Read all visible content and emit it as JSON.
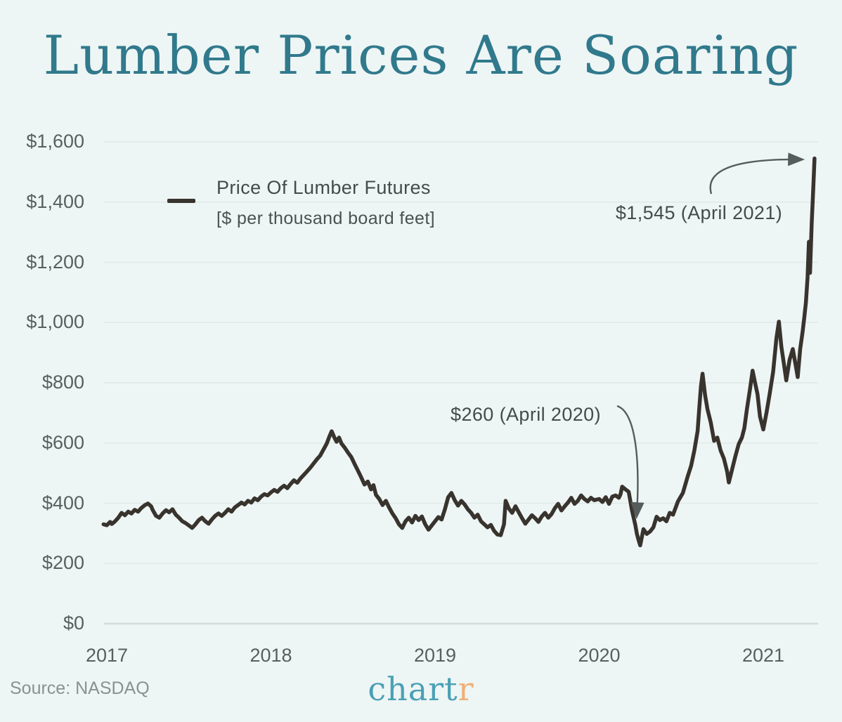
{
  "title": "Lumber Prices Are Soaring",
  "legend": {
    "label": "Price Of Lumber Futures",
    "sublabel": "[$ per thousand board feet]"
  },
  "annotations": {
    "peak": "$1,545 (April 2021)",
    "trough": "$260 (April 2020)"
  },
  "footer": {
    "source": "Source: NASDAQ",
    "logo_main": "chart",
    "logo_accent": "r"
  },
  "colors": {
    "background": "#edf6f5",
    "title": "#31798c",
    "line": "#39332e",
    "grid": "#dfe9e8",
    "axis_zero": "#d2dcdb",
    "axis_text": "#57605e",
    "annotation_text": "#454b4a",
    "sub_text": "#4b5150",
    "arrow": "#565c5c",
    "source_text": "#8a918f",
    "logo_teal": "#4aa0b5",
    "logo_orange": "#f0b078"
  },
  "chart_data": {
    "type": "line",
    "title": "Lumber Prices Are Soaring",
    "series_name": "Price Of Lumber Futures",
    "units": "$ per thousand board feet",
    "source": "NASDAQ",
    "grid": "horizontal-only",
    "legend_position": "top-left-inside",
    "xlim": [
      2016.98,
      2021.35
    ],
    "ylim": [
      0,
      1600
    ],
    "x_ticks": [
      {
        "value": 2017,
        "label": "2017"
      },
      {
        "value": 2018,
        "label": "2018"
      },
      {
        "value": 2019,
        "label": "2019"
      },
      {
        "value": 2020,
        "label": "2020"
      },
      {
        "value": 2021,
        "label": "2021"
      }
    ],
    "y_ticks": [
      {
        "value": 1600,
        "label": "$1,600"
      },
      {
        "value": 1400,
        "label": "$1,400"
      },
      {
        "value": 1200,
        "label": "$1,200"
      },
      {
        "value": 1000,
        "label": "$1,000"
      },
      {
        "value": 800,
        "label": "$800"
      },
      {
        "value": 600,
        "label": "$600"
      },
      {
        "value": 400,
        "label": "$400"
      },
      {
        "value": 200,
        "label": "$200"
      },
      {
        "value": 0,
        "label": "$0"
      }
    ],
    "highlights": [
      {
        "x": 2021.31,
        "y": 1545,
        "label": "$1,545 (April 2021)"
      },
      {
        "x": 2020.25,
        "y": 260,
        "label": "$260 (April 2020)"
      }
    ],
    "points": [
      [
        2016.98,
        330
      ],
      [
        2017.0,
        327
      ],
      [
        2017.02,
        338
      ],
      [
        2017.03,
        331
      ],
      [
        2017.05,
        340
      ],
      [
        2017.07,
        352
      ],
      [
        2017.09,
        368
      ],
      [
        2017.11,
        360
      ],
      [
        2017.13,
        372
      ],
      [
        2017.15,
        366
      ],
      [
        2017.17,
        378
      ],
      [
        2017.19,
        372
      ],
      [
        2017.21,
        384
      ],
      [
        2017.23,
        393
      ],
      [
        2017.25,
        399
      ],
      [
        2017.27,
        390
      ],
      [
        2017.28,
        377
      ],
      [
        2017.3,
        358
      ],
      [
        2017.32,
        352
      ],
      [
        2017.34,
        366
      ],
      [
        2017.36,
        377
      ],
      [
        2017.38,
        370
      ],
      [
        2017.4,
        380
      ],
      [
        2017.42,
        362
      ],
      [
        2017.44,
        352
      ],
      [
        2017.46,
        340
      ],
      [
        2017.48,
        334
      ],
      [
        2017.5,
        326
      ],
      [
        2017.52,
        318
      ],
      [
        2017.54,
        330
      ],
      [
        2017.56,
        344
      ],
      [
        2017.58,
        352
      ],
      [
        2017.6,
        340
      ],
      [
        2017.62,
        332
      ],
      [
        2017.64,
        346
      ],
      [
        2017.66,
        358
      ],
      [
        2017.68,
        366
      ],
      [
        2017.7,
        358
      ],
      [
        2017.72,
        368
      ],
      [
        2017.74,
        380
      ],
      [
        2017.76,
        372
      ],
      [
        2017.78,
        386
      ],
      [
        2017.8,
        394
      ],
      [
        2017.82,
        402
      ],
      [
        2017.84,
        396
      ],
      [
        2017.86,
        408
      ],
      [
        2017.88,
        402
      ],
      [
        2017.9,
        416
      ],
      [
        2017.92,
        410
      ],
      [
        2017.94,
        422
      ],
      [
        2017.96,
        430
      ],
      [
        2017.98,
        426
      ],
      [
        2018.0,
        436
      ],
      [
        2018.02,
        444
      ],
      [
        2018.04,
        438
      ],
      [
        2018.06,
        450
      ],
      [
        2018.08,
        458
      ],
      [
        2018.1,
        450
      ],
      [
        2018.12,
        464
      ],
      [
        2018.14,
        476
      ],
      [
        2018.16,
        468
      ],
      [
        2018.18,
        482
      ],
      [
        2018.2,
        494
      ],
      [
        2018.22,
        506
      ],
      [
        2018.24,
        518
      ],
      [
        2018.26,
        532
      ],
      [
        2018.28,
        546
      ],
      [
        2018.3,
        558
      ],
      [
        2018.32,
        578
      ],
      [
        2018.34,
        598
      ],
      [
        2018.355,
        620
      ],
      [
        2018.37,
        639
      ],
      [
        2018.385,
        620
      ],
      [
        2018.4,
        604
      ],
      [
        2018.415,
        618
      ],
      [
        2018.43,
        598
      ],
      [
        2018.45,
        584
      ],
      [
        2018.47,
        568
      ],
      [
        2018.49,
        553
      ],
      [
        2018.51,
        530
      ],
      [
        2018.53,
        508
      ],
      [
        2018.55,
        486
      ],
      [
        2018.57,
        462
      ],
      [
        2018.59,
        472
      ],
      [
        2018.61,
        446
      ],
      [
        2018.625,
        460
      ],
      [
        2018.64,
        428
      ],
      [
        2018.66,
        414
      ],
      [
        2018.68,
        394
      ],
      [
        2018.7,
        408
      ],
      [
        2018.72,
        386
      ],
      [
        2018.74,
        366
      ],
      [
        2018.76,
        350
      ],
      [
        2018.78,
        330
      ],
      [
        2018.8,
        318
      ],
      [
        2018.82,
        340
      ],
      [
        2018.84,
        352
      ],
      [
        2018.86,
        336
      ],
      [
        2018.88,
        358
      ],
      [
        2018.9,
        344
      ],
      [
        2018.92,
        356
      ],
      [
        2018.94,
        330
      ],
      [
        2018.96,
        312
      ],
      [
        2018.98,
        326
      ],
      [
        2019.0,
        340
      ],
      [
        2019.02,
        354
      ],
      [
        2019.04,
        346
      ],
      [
        2019.06,
        380
      ],
      [
        2019.08,
        420
      ],
      [
        2019.1,
        434
      ],
      [
        2019.12,
        410
      ],
      [
        2019.14,
        392
      ],
      [
        2019.16,
        408
      ],
      [
        2019.18,
        396
      ],
      [
        2019.2,
        380
      ],
      [
        2019.22,
        368
      ],
      [
        2019.24,
        352
      ],
      [
        2019.26,
        362
      ],
      [
        2019.28,
        340
      ],
      [
        2019.3,
        330
      ],
      [
        2019.32,
        320
      ],
      [
        2019.34,
        328
      ],
      [
        2019.36,
        308
      ],
      [
        2019.38,
        296
      ],
      [
        2019.4,
        294
      ],
      [
        2019.42,
        330
      ],
      [
        2019.43,
        408
      ],
      [
        2019.45,
        382
      ],
      [
        2019.47,
        368
      ],
      [
        2019.49,
        390
      ],
      [
        2019.51,
        370
      ],
      [
        2019.53,
        350
      ],
      [
        2019.55,
        332
      ],
      [
        2019.57,
        346
      ],
      [
        2019.59,
        360
      ],
      [
        2019.61,
        350
      ],
      [
        2019.63,
        338
      ],
      [
        2019.65,
        356
      ],
      [
        2019.67,
        368
      ],
      [
        2019.69,
        352
      ],
      [
        2019.71,
        364
      ],
      [
        2019.73,
        384
      ],
      [
        2019.75,
        398
      ],
      [
        2019.77,
        376
      ],
      [
        2019.79,
        390
      ],
      [
        2019.81,
        402
      ],
      [
        2019.83,
        418
      ],
      [
        2019.85,
        398
      ],
      [
        2019.87,
        408
      ],
      [
        2019.89,
        426
      ],
      [
        2019.91,
        414
      ],
      [
        2019.93,
        406
      ],
      [
        2019.95,
        418
      ],
      [
        2019.97,
        410
      ],
      [
        2020.0,
        414
      ],
      [
        2020.02,
        404
      ],
      [
        2020.04,
        420
      ],
      [
        2020.06,
        398
      ],
      [
        2020.08,
        422
      ],
      [
        2020.1,
        426
      ],
      [
        2020.12,
        418
      ],
      [
        2020.13,
        430
      ],
      [
        2020.14,
        455
      ],
      [
        2020.16,
        446
      ],
      [
        2020.18,
        438
      ],
      [
        2020.2,
        376
      ],
      [
        2020.22,
        328
      ],
      [
        2020.23,
        298
      ],
      [
        2020.24,
        278
      ],
      [
        2020.25,
        260
      ],
      [
        2020.27,
        314
      ],
      [
        2020.29,
        298
      ],
      [
        2020.31,
        306
      ],
      [
        2020.33,
        320
      ],
      [
        2020.35,
        355
      ],
      [
        2020.37,
        344
      ],
      [
        2020.39,
        350
      ],
      [
        2020.41,
        340
      ],
      [
        2020.43,
        368
      ],
      [
        2020.45,
        362
      ],
      [
        2020.48,
        406
      ],
      [
        2020.51,
        434
      ],
      [
        2020.54,
        490
      ],
      [
        2020.56,
        524
      ],
      [
        2020.58,
        575
      ],
      [
        2020.6,
        640
      ],
      [
        2020.61,
        715
      ],
      [
        2020.62,
        788
      ],
      [
        2020.63,
        830
      ],
      [
        2020.645,
        760
      ],
      [
        2020.66,
        712
      ],
      [
        2020.68,
        668
      ],
      [
        2020.7,
        607
      ],
      [
        2020.72,
        618
      ],
      [
        2020.74,
        575
      ],
      [
        2020.76,
        548
      ],
      [
        2020.78,
        505
      ],
      [
        2020.79,
        469
      ],
      [
        2020.81,
        512
      ],
      [
        2020.83,
        556
      ],
      [
        2020.85,
        596
      ],
      [
        2020.87,
        618
      ],
      [
        2020.885,
        650
      ],
      [
        2020.9,
        712
      ],
      [
        2020.92,
        782
      ],
      [
        2020.935,
        840
      ],
      [
        2020.95,
        800
      ],
      [
        2020.965,
        762
      ],
      [
        2020.98,
        688
      ],
      [
        2021.0,
        645
      ],
      [
        2021.02,
        702
      ],
      [
        2021.04,
        766
      ],
      [
        2021.06,
        836
      ],
      [
        2021.08,
        948
      ],
      [
        2021.095,
        1003
      ],
      [
        2021.11,
        920
      ],
      [
        2021.125,
        865
      ],
      [
        2021.14,
        808
      ],
      [
        2021.16,
        876
      ],
      [
        2021.18,
        912
      ],
      [
        2021.2,
        850
      ],
      [
        2021.21,
        819
      ],
      [
        2021.225,
        912
      ],
      [
        2021.24,
        970
      ],
      [
        2021.25,
        1018
      ],
      [
        2021.26,
        1068
      ],
      [
        2021.27,
        1150
      ],
      [
        2021.278,
        1268
      ],
      [
        2021.285,
        1165
      ],
      [
        2021.295,
        1330
      ],
      [
        2021.305,
        1450
      ],
      [
        2021.312,
        1545
      ]
    ]
  }
}
